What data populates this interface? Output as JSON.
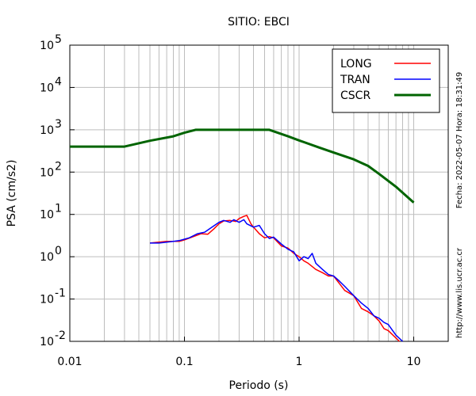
{
  "chart_data": {
    "type": "line",
    "title": "SITIO: EBCI",
    "xlabel": "Periodo (s)",
    "ylabel": "PSA (cm/s2)",
    "xscale": "log",
    "yscale": "log",
    "xlim": [
      0.01,
      20
    ],
    "ylim": [
      0.01,
      100000
    ],
    "xticks": [
      "0.01",
      "0.1",
      "1",
      "10"
    ],
    "yticks": [
      {
        "base": "10",
        "exp": "-2"
      },
      {
        "base": "10",
        "exp": "-1"
      },
      {
        "base": "10",
        "exp": "0"
      },
      {
        "base": "10",
        "exp": "1"
      },
      {
        "base": "10",
        "exp": "2"
      },
      {
        "base": "10",
        "exp": "3"
      },
      {
        "base": "10",
        "exp": "4"
      },
      {
        "base": "10",
        "exp": "5"
      }
    ],
    "grid": true,
    "legend_position": "top-right",
    "series": [
      {
        "name": "LONG",
        "color": "#ff0000",
        "x": [
          0.05,
          0.06,
          0.07,
          0.08,
          0.09,
          0.1,
          0.12,
          0.14,
          0.16,
          0.18,
          0.2,
          0.22,
          0.25,
          0.28,
          0.3,
          0.33,
          0.35,
          0.38,
          0.4,
          0.45,
          0.5,
          0.55,
          0.6,
          0.7,
          0.8,
          0.9,
          1.0,
          1.1,
          1.2,
          1.4,
          1.6,
          1.8,
          2.0,
          2.2,
          2.5,
          3.0,
          3.5,
          4.0,
          4.5,
          5.0,
          5.5,
          6.0,
          7.0,
          7.5
        ],
        "y": [
          2.1,
          2.2,
          2.3,
          2.3,
          2.3,
          2.5,
          3.0,
          3.5,
          3.4,
          4.5,
          6.0,
          7.0,
          7.2,
          6.8,
          8.0,
          9.0,
          9.5,
          6.0,
          5.0,
          3.5,
          2.8,
          3.0,
          2.8,
          1.8,
          1.6,
          1.2,
          1.0,
          0.8,
          0.7,
          0.5,
          0.42,
          0.35,
          0.35,
          0.25,
          0.16,
          0.12,
          0.06,
          0.05,
          0.04,
          0.03,
          0.02,
          0.018,
          0.012,
          0.01
        ]
      },
      {
        "name": "TRAN",
        "color": "#0000ff",
        "x": [
          0.05,
          0.06,
          0.07,
          0.08,
          0.09,
          0.1,
          0.11,
          0.13,
          0.15,
          0.17,
          0.2,
          0.22,
          0.25,
          0.27,
          0.3,
          0.33,
          0.35,
          0.4,
          0.45,
          0.5,
          0.55,
          0.6,
          0.7,
          0.8,
          0.9,
          1.0,
          1.1,
          1.2,
          1.3,
          1.4,
          1.6,
          1.8,
          2.0,
          2.2,
          2.5,
          3.0,
          3.5,
          4.0,
          4.5,
          5.0,
          5.5,
          6.0,
          7.0,
          8.0
        ],
        "y": [
          2.1,
          2.1,
          2.2,
          2.3,
          2.4,
          2.6,
          2.8,
          3.5,
          3.8,
          4.8,
          6.5,
          7.2,
          6.5,
          7.5,
          6.5,
          7.5,
          6.0,
          5.0,
          5.5,
          3.5,
          2.7,
          2.9,
          2.0,
          1.5,
          1.3,
          0.8,
          1.0,
          0.9,
          1.2,
          0.7,
          0.5,
          0.38,
          0.35,
          0.28,
          0.2,
          0.12,
          0.08,
          0.06,
          0.04,
          0.035,
          0.028,
          0.025,
          0.014,
          0.01
        ]
      },
      {
        "name": "CSCR",
        "color": "#006400",
        "x": [
          0.01,
          0.03,
          0.05,
          0.08,
          0.1,
          0.125,
          0.2,
          0.3,
          0.4,
          0.55,
          0.8,
          1.0,
          1.5,
          2.0,
          3.0,
          4.0,
          5.0,
          7.0,
          10.0
        ],
        "y": [
          400,
          400,
          550,
          700,
          850,
          1000,
          1000,
          1000,
          1000,
          1000,
          700,
          560,
          380,
          290,
          200,
          140,
          90,
          45,
          19
        ]
      }
    ],
    "annotations": [
      "Fecha: 2022-05-07  Hora: 18:31:49",
      "http://www.lis.ucr.ac.cr"
    ]
  }
}
